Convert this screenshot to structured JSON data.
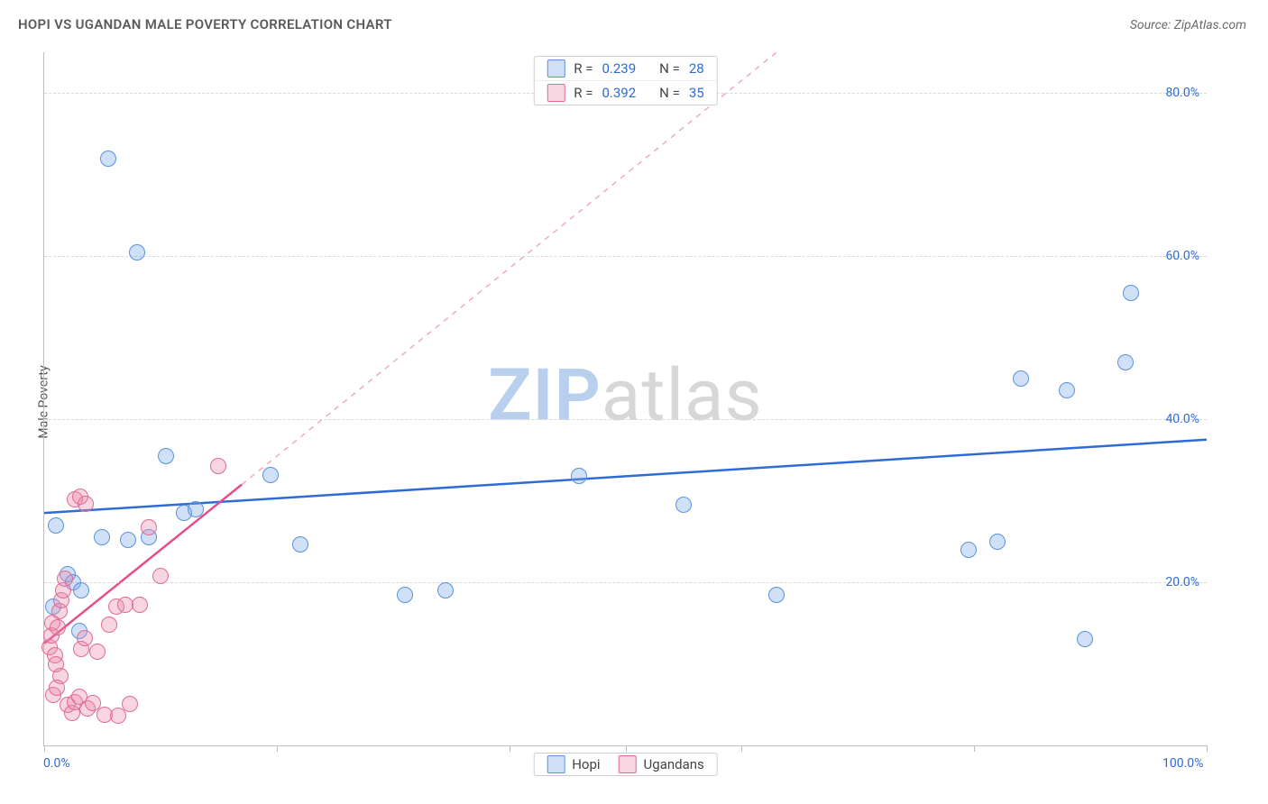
{
  "title": "HOPI VS UGANDAN MALE POVERTY CORRELATION CHART",
  "source": "Source: ZipAtlas.com",
  "ylabel": "Male Poverty",
  "watermark": {
    "a": "ZIP",
    "b": "atlas",
    "color_a": "#b9cfee",
    "color_b": "#d7d7d7"
  },
  "chart": {
    "type": "scatter",
    "background_color": "#ffffff",
    "grid_color": "#d9d9d9",
    "axis_color": "#bdbdbd",
    "tick_label_color": "#2f6bd6",
    "xlim": [
      0,
      100
    ],
    "ylim": [
      0,
      85
    ],
    "xticks": [
      0,
      20,
      40,
      50,
      60,
      80,
      100
    ],
    "xtick_labels": {
      "0": "0.0%",
      "100": "100.0%"
    },
    "yticks": [
      20,
      40,
      60,
      80
    ],
    "ytick_labels": {
      "20": "20.0%",
      "40": "40.0%",
      "60": "60.0%",
      "80": "80.0%"
    },
    "marker_size": 18,
    "series": [
      {
        "name": "Hopi",
        "fill": "rgba(119,166,230,0.35)",
        "stroke": "#5a93dd",
        "R": "0.239",
        "N": "28",
        "trend": {
          "x1": 0,
          "y1": 28.5,
          "x2": 100,
          "y2": 37.5,
          "color": "#2f6bd6",
          "width": 2.5,
          "dash": ""
        },
        "points": [
          [
            5.5,
            72
          ],
          [
            8,
            60.5
          ],
          [
            1,
            27
          ],
          [
            2,
            21
          ],
          [
            2.5,
            20
          ],
          [
            3,
            14
          ],
          [
            5,
            25.5
          ],
          [
            7.2,
            25.2
          ],
          [
            9,
            25.5
          ],
          [
            10.5,
            35.5
          ],
          [
            12,
            28.5
          ],
          [
            13,
            29
          ],
          [
            19.5,
            33.2
          ],
          [
            22,
            24.7
          ],
          [
            31,
            18.5
          ],
          [
            34.5,
            19
          ],
          [
            46,
            33
          ],
          [
            55,
            29.5
          ],
          [
            63,
            18.5
          ],
          [
            79.5,
            24
          ],
          [
            82,
            25
          ],
          [
            84,
            45
          ],
          [
            88,
            43.5
          ],
          [
            89.5,
            13
          ],
          [
            93,
            47
          ],
          [
            93.5,
            55.5
          ],
          [
            0.8,
            17
          ],
          [
            3.2,
            19
          ]
        ]
      },
      {
        "name": "Ugandans",
        "fill": "rgba(236,138,170,0.35)",
        "stroke": "#e06a96",
        "R": "0.392",
        "N": "35",
        "trend_solid": {
          "x1": 0,
          "y1": 12.5,
          "x2": 17,
          "y2": 32,
          "color": "#e84b8a",
          "width": 2.5,
          "dash": ""
        },
        "trend_dash": {
          "x1": 17,
          "y1": 32,
          "x2": 63,
          "y2": 85,
          "color": "#f2a8c2",
          "width": 1.5,
          "dash": "6,6"
        },
        "points": [
          [
            0.5,
            12
          ],
          [
            0.6,
            13.5
          ],
          [
            0.7,
            15
          ],
          [
            0.9,
            11
          ],
          [
            1,
            10
          ],
          [
            1.2,
            14.5
          ],
          [
            1.3,
            16.5
          ],
          [
            1.5,
            17.8
          ],
          [
            1.6,
            19
          ],
          [
            1.8,
            20.5
          ],
          [
            1.4,
            8.5
          ],
          [
            2,
            5
          ],
          [
            2.4,
            4
          ],
          [
            2.6,
            5.3
          ],
          [
            3,
            6
          ],
          [
            3.2,
            11.8
          ],
          [
            3.5,
            13.2
          ],
          [
            3.7,
            4.5
          ],
          [
            4.2,
            5.2
          ],
          [
            4.6,
            11.5
          ],
          [
            5.2,
            3.8
          ],
          [
            5.6,
            14.8
          ],
          [
            6.2,
            17
          ],
          [
            6.4,
            3.7
          ],
          [
            7,
            17.2
          ],
          [
            7.4,
            5.1
          ],
          [
            8.2,
            17.3
          ],
          [
            9,
            26.8
          ],
          [
            10,
            20.8
          ],
          [
            2.6,
            30.2
          ],
          [
            3.1,
            30.5
          ],
          [
            3.6,
            29.6
          ],
          [
            15,
            34.3
          ],
          [
            0.8,
            6.2
          ],
          [
            1.1,
            7.1
          ]
        ]
      }
    ],
    "legend_top_labels": {
      "R": "R =",
      "N": "N ="
    },
    "legend_bottom": [
      "Hopi",
      "Ugandans"
    ]
  }
}
